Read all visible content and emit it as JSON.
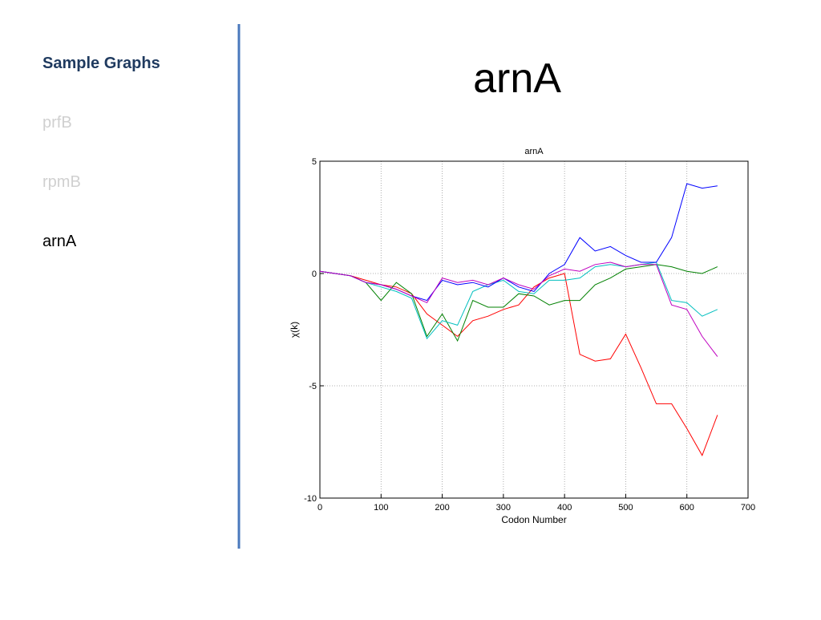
{
  "sidebar": {
    "heading": "Sample Graphs",
    "items": [
      "prfB",
      "rpmB",
      "arnA"
    ]
  },
  "slide_title": "arnA",
  "chart_data": {
    "type": "line",
    "title": "arnA",
    "x_label": "Codon Number",
    "y_label": "χ(k)",
    "x": [
      0,
      25,
      50,
      75,
      100,
      125,
      150,
      175,
      200,
      225,
      250,
      275,
      300,
      325,
      350,
      375,
      400,
      425,
      450,
      475,
      500,
      525,
      550,
      575,
      600,
      625,
      650
    ],
    "series": [
      {
        "color": "#ff0000",
        "values": [
          0.1,
          0,
          -0.1,
          -0.3,
          -0.5,
          -0.6,
          -0.9,
          -1.8,
          -2.3,
          -2.8,
          -2.1,
          -1.9,
          -1.6,
          -1.4,
          -0.6,
          -0.2,
          0,
          -3.6,
          -3.9,
          -3.8,
          -2.7,
          -4.2,
          -5.8,
          -5.8,
          -6.9,
          -8.1,
          -6.3
        ]
      },
      {
        "color": "#008000",
        "values": [
          0.1,
          0,
          -0.1,
          -0.4,
          -1.2,
          -0.4,
          -0.9,
          -2.8,
          -1.8,
          -3.0,
          -1.2,
          -1.5,
          -1.5,
          -0.9,
          -1.0,
          -1.4,
          -1.2,
          -1.2,
          -0.5,
          -0.2,
          0.2,
          0.3,
          0.4,
          0.3,
          0.1,
          0,
          0.3
        ]
      },
      {
        "color": "#00bfbf",
        "values": [
          0.1,
          0,
          -0.1,
          -0.4,
          -0.6,
          -0.8,
          -1.1,
          -2.9,
          -2.1,
          -2.3,
          -0.8,
          -0.5,
          -0.3,
          -0.8,
          -0.9,
          -0.3,
          -0.3,
          -0.2,
          0.3,
          0.4,
          0.3,
          0.4,
          0.5,
          -1.2,
          -1.3,
          -1.9,
          -1.6
        ]
      },
      {
        "color": "#0000ff",
        "values": [
          0.1,
          0,
          -0.1,
          -0.4,
          -0.5,
          -0.7,
          -1.0,
          -1.2,
          -0.3,
          -0.5,
          -0.4,
          -0.6,
          -0.2,
          -0.6,
          -0.8,
          0,
          0.4,
          1.6,
          1.0,
          1.2,
          0.8,
          0.5,
          0.5,
          1.6,
          4.0,
          3.8,
          3.9
        ]
      },
      {
        "color": "#bf00bf",
        "values": [
          0.1,
          0,
          -0.1,
          -0.4,
          -0.5,
          -0.7,
          -1.0,
          -1.3,
          -0.2,
          -0.4,
          -0.3,
          -0.5,
          -0.2,
          -0.5,
          -0.7,
          -0.1,
          0.2,
          0.1,
          0.4,
          0.5,
          0.3,
          0.4,
          0.4,
          -1.4,
          -1.6,
          -2.8,
          -3.7
        ]
      }
    ],
    "xlim": [
      0,
      700
    ],
    "xticks": [
      0,
      100,
      200,
      300,
      400,
      500,
      600,
      700
    ],
    "ylim": [
      -10,
      5
    ],
    "yticks": [
      -10,
      -5,
      0,
      5
    ],
    "grid": true
  }
}
